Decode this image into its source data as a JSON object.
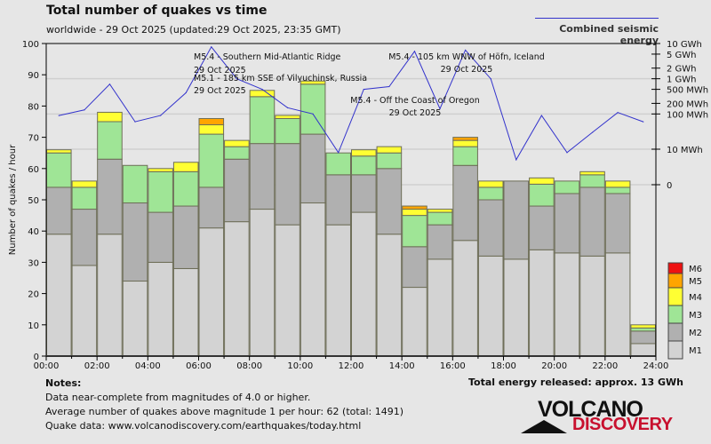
{
  "header": {
    "title": "Total number of quakes vs time",
    "subtitle": "worldwide - 29 Oct 2025 (updated:29 Oct 2025, 23:35 GMT)"
  },
  "notes": {
    "heading": "Notes:",
    "lines": [
      "Data near-complete from magnitudes of 4.0 or higher.",
      "Average number of quakes above magnitude 1 per hour: 62 (total: 1491)",
      "Quake data: www.volcanodiscovery.com/earthquakes/today.html"
    ],
    "total_energy": "Total energy released: approx. 13 GWh"
  },
  "logo": {
    "line1": "VOLCANO",
    "line2": "DISCOVERY"
  },
  "chart_data": {
    "type": "bar",
    "stacked": true,
    "title": "Total number of quakes vs time",
    "xlabel": "",
    "ylabel": "Number of quakes / hour",
    "ylim": [
      0,
      100
    ],
    "yticks": [
      "0",
      "10",
      "20",
      "30",
      "40",
      "50",
      "60",
      "70",
      "80",
      "90",
      "100"
    ],
    "xticks": [
      "00:00",
      "02:00",
      "04:00",
      "06:00",
      "08:00",
      "10:00",
      "12:00",
      "14:00",
      "16:00",
      "18:00",
      "20:00",
      "22:00",
      "24:00"
    ],
    "hours": [
      0,
      1,
      2,
      3,
      4,
      5,
      6,
      7,
      8,
      9,
      10,
      11,
      12,
      13,
      14,
      15,
      16,
      17,
      18,
      19,
      20,
      21,
      22,
      23
    ],
    "series": [
      {
        "name": "M1",
        "color": "#d3d3d3",
        "values": [
          39,
          29,
          39,
          24,
          30,
          28,
          41,
          43,
          47,
          42,
          49,
          42,
          46,
          39,
          22,
          31,
          37,
          32,
          31,
          34,
          33,
          32,
          33,
          4
        ]
      },
      {
        "name": "M2",
        "color": "#b0b0b0",
        "values": [
          15,
          18,
          24,
          25,
          16,
          20,
          13,
          20,
          21,
          26,
          22,
          16,
          12,
          21,
          13,
          11,
          24,
          18,
          25,
          14,
          19,
          22,
          19,
          4
        ]
      },
      {
        "name": "M3",
        "color": "#9fe596",
        "values": [
          11,
          7,
          12,
          12,
          13,
          11,
          17,
          4,
          15,
          8,
          16,
          7,
          6,
          5,
          10,
          4,
          6,
          4,
          0,
          7,
          4,
          4,
          2,
          1
        ]
      },
      {
        "name": "M4",
        "color": "#ffff33",
        "values": [
          1,
          2,
          3,
          0,
          1,
          3,
          3,
          2,
          2,
          1,
          1,
          0,
          2,
          2,
          2,
          1,
          2,
          2,
          0,
          2,
          0,
          1,
          2,
          1
        ]
      },
      {
        "name": "M5",
        "color": "#ffa500",
        "values": [
          0,
          0,
          0,
          0,
          0,
          0,
          2,
          0,
          0,
          0,
          0,
          0,
          0,
          0,
          1,
          0,
          1,
          0,
          0,
          0,
          0,
          0,
          0,
          0
        ]
      },
      {
        "name": "M6",
        "color": "#ee1111",
        "values": [
          0,
          0,
          0,
          0,
          0,
          0,
          0,
          0,
          0,
          0,
          0,
          0,
          0,
          0,
          0,
          0,
          0,
          0,
          0,
          0,
          0,
          0,
          0,
          0
        ]
      }
    ],
    "legend": [
      "M6",
      "M5",
      "M4",
      "M3",
      "M2",
      "M1"
    ],
    "legend_position": "bottom-right",
    "energy": {
      "name": "Combined seismic energy",
      "color": "#3333cc",
      "scale": "log",
      "tick_labels": [
        "10 GWh",
        "5 GWh",
        "2 GWh",
        "1 GWh",
        "500 MWh",
        "200 MWh",
        "100 MWh",
        "10 MWh",
        "0"
      ],
      "tick_values_mwh": [
        10000,
        5000,
        2000,
        1000,
        500,
        200,
        100,
        10,
        0
      ],
      "values_mwh": [
        90,
        130,
        700,
        60,
        90,
        400,
        8000,
        1000,
        500,
        150,
        100,
        8,
        500,
        600,
        6000,
        140,
        6500,
        1000,
        5,
        90,
        8,
        30,
        110,
        60
      ]
    },
    "annotations": [
      {
        "text": "M5.4 - Southern Mid-Atlantic Ridge",
        "date": "29 Oct 2025",
        "hour": 6.5
      },
      {
        "text": "M5.1 - 185 km SSE of Vilyuchinsk, Russia",
        "date": "29 Oct 2025",
        "hour": 6.5
      },
      {
        "text": "M5.4 - 105 km WNW of Höfn, Iceland",
        "date": "29 Oct 2025",
        "hour": 16.5
      },
      {
        "text": "M5.4 - Off the Coast of Oregon",
        "date": "29 Oct 2025",
        "hour": 14.5
      }
    ]
  }
}
